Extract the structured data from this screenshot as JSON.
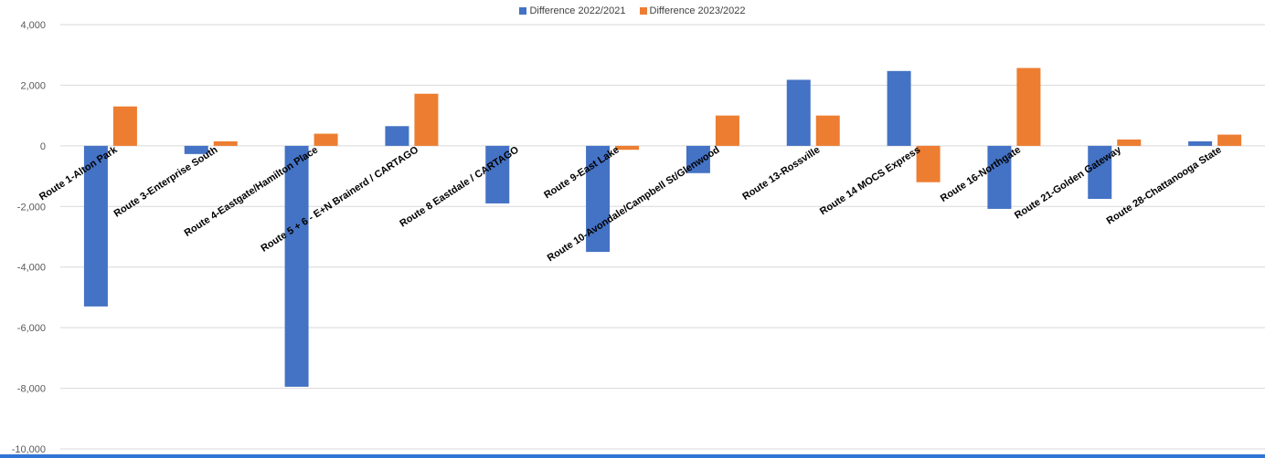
{
  "chart_data": {
    "type": "bar",
    "title": "",
    "xlabel": "",
    "ylabel": "",
    "ylim": [
      -10000,
      4000
    ],
    "y_ticks": [
      "4,000",
      "2,000",
      "0",
      "-2,000",
      "-4,000",
      "-6,000",
      "-8,000",
      "-10,000"
    ],
    "y_tick_values": [
      4000,
      2000,
      0,
      -2000,
      -4000,
      -6000,
      -8000,
      -10000
    ],
    "grid": true,
    "legend_position": "top-center",
    "categories": [
      "Route 1-Alton Park",
      "Route 3-Enterprise South",
      "Route 4-Eastgate/Hamilton Place",
      "Route 5 + 6 - E+N Brainerd / CARTAGO",
      "Route 8  Eastdale / CARTAGO",
      "Route 9-East Lake",
      "Route 10-Avondale/Campbell St/Glenwood",
      "Route 13-Rossville",
      "Route 14 MOCS Express",
      "Route 16-Northgate",
      "Route 21-Golden Gateway",
      "Route 28-Chattanooga State"
    ],
    "series": [
      {
        "name": "Difference 2022/2021",
        "color": "#4472C4",
        "values": [
          -5300,
          -270,
          -7950,
          650,
          -1900,
          -3500,
          -900,
          2180,
          2470,
          -2080,
          -1750,
          150
        ]
      },
      {
        "name": "Difference 2023/2022",
        "color": "#ED7D31",
        "values": [
          1300,
          150,
          400,
          1720,
          0,
          -130,
          1000,
          1000,
          -1200,
          2570,
          210,
          370
        ]
      }
    ]
  },
  "colors": {
    "grid": "#D9D9D9",
    "axis_text": "#595959",
    "bottom_bar": "#2F75D6"
  }
}
